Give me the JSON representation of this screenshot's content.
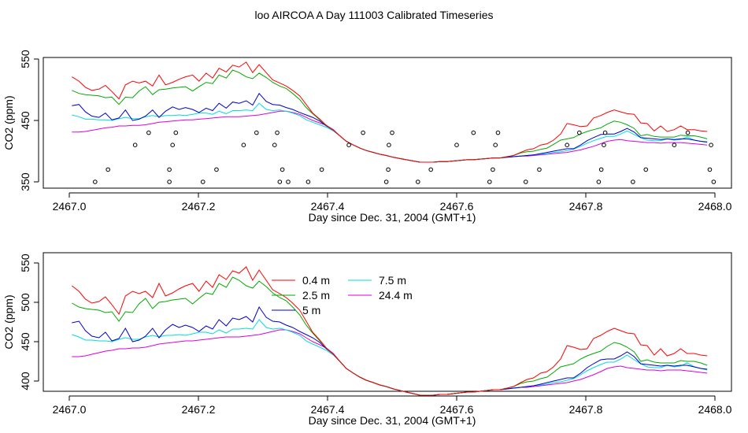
{
  "title": "loo AIRCOA A  Day 111003  Calibrated Timeseries",
  "chart_data": [
    {
      "type": "line",
      "xlabel": "Day since Dec. 31, 2004 (GMT+1)",
      "ylabel": "CO2 (ppm)",
      "xlim": [
        2467.0,
        2468.0
      ],
      "ylim": [
        350,
        550
      ],
      "xticks": [
        "2467.0",
        "2467.2",
        "2467.4",
        "2467.6",
        "2467.8",
        "2468.0"
      ],
      "yticks": [
        "350",
        "450",
        "550"
      ],
      "grid": false,
      "legend": "none",
      "x": [
        2467.004,
        2467.015,
        2467.025,
        2467.035,
        2467.046,
        2467.056,
        2467.066,
        2467.077,
        2467.087,
        2467.098,
        2467.108,
        2467.118,
        2467.129,
        2467.139,
        2467.149,
        2467.16,
        2467.17,
        2467.18,
        2467.191,
        2467.201,
        2467.212,
        2467.222,
        2467.232,
        2467.243,
        2467.253,
        2467.263,
        2467.274,
        2467.284,
        2467.294,
        2467.305,
        2467.315,
        2467.326,
        2467.336,
        2467.346,
        2467.357,
        2467.367,
        2467.377,
        2467.388,
        2467.398,
        2467.409,
        2467.419,
        2467.429,
        2467.44,
        2467.45,
        2467.46,
        2467.471,
        2467.481,
        2467.491,
        2467.502,
        2467.512,
        2467.522,
        2467.533,
        2467.543,
        2467.554,
        2467.564,
        2467.574,
        2467.585,
        2467.595,
        2467.605,
        2467.616,
        2467.626,
        2467.636,
        2467.647,
        2467.657,
        2467.667,
        2467.678,
        2467.688,
        2467.699,
        2467.709,
        2467.719,
        2467.73,
        2467.74,
        2467.75,
        2467.761,
        2467.771,
        2467.781,
        2467.792,
        2467.802,
        2467.812,
        2467.823,
        2467.833,
        2467.844,
        2467.854,
        2467.864,
        2467.875,
        2467.885,
        2467.895,
        2467.906,
        2467.916,
        2467.926,
        2467.937,
        2467.947,
        2467.957,
        2467.968,
        2467.978,
        2467.988
      ],
      "series": [
        {
          "name": "0.4 m",
          "color": "#ff0000",
          "values": [
            521,
            514,
            504,
            499,
            501,
            507,
            497,
            485,
            508,
            514,
            511,
            514,
            506,
            524,
            508,
            512,
            517,
            521,
            524,
            514,
            527,
            519,
            535,
            529,
            540,
            537,
            545,
            528,
            541,
            528,
            516,
            511,
            506,
            499,
            490,
            476,
            462,
            452,
            442,
            434,
            425,
            416,
            410,
            405,
            401,
            398,
            395,
            393,
            390,
            388,
            386,
            384,
            382,
            382,
            382,
            383,
            383,
            384,
            385,
            386,
            386,
            387,
            388,
            389,
            389,
            391,
            393,
            398,
            402,
            404,
            410,
            412,
            418,
            428,
            445,
            443,
            440,
            441,
            454,
            458,
            463,
            467,
            464,
            461,
            460,
            446,
            445,
            433,
            441,
            432,
            435,
            441,
            435,
            435,
            433,
            432
          ]
        },
        {
          "name": "2.5 m",
          "color": "#00aa00",
          "values": [
            499,
            494,
            492,
            491,
            490,
            487,
            488,
            476,
            488,
            487,
            498,
            505,
            492,
            500,
            501,
            503,
            504,
            505,
            498,
            505,
            512,
            510,
            524,
            519,
            532,
            528,
            521,
            518,
            527,
            520,
            512,
            506,
            502,
            494,
            484,
            471,
            461,
            451,
            442,
            434,
            425,
            416,
            410,
            405,
            401,
            398,
            395,
            393,
            390,
            388,
            386,
            384,
            382,
            382,
            382,
            383,
            383,
            384,
            385,
            386,
            386,
            387,
            388,
            389,
            389,
            391,
            393,
            397,
            399,
            400,
            403,
            405,
            411,
            418,
            420,
            422,
            428,
            432,
            435,
            438,
            444,
            449,
            447,
            443,
            437,
            425,
            427,
            424,
            423,
            423,
            423,
            426,
            425,
            425,
            423,
            420
          ]
        },
        {
          "name": "5 m",
          "color": "#0000cc",
          "values": [
            474,
            476,
            464,
            457,
            455,
            462,
            451,
            454,
            467,
            450,
            452,
            457,
            467,
            455,
            465,
            472,
            468,
            471,
            468,
            463,
            470,
            466,
            478,
            470,
            480,
            478,
            482,
            475,
            494,
            481,
            476,
            475,
            471,
            468,
            463,
            459,
            455,
            449,
            441,
            434,
            425,
            416,
            410,
            405,
            401,
            398,
            395,
            393,
            390,
            388,
            386,
            384,
            382,
            382,
            382,
            383,
            383,
            384,
            385,
            386,
            386,
            387,
            388,
            389,
            389,
            390,
            391,
            392,
            393,
            394,
            396,
            398,
            400,
            402,
            404,
            404,
            410,
            417,
            422,
            427,
            428,
            428,
            432,
            437,
            431,
            422,
            421,
            420,
            419,
            420,
            419,
            420,
            420,
            418,
            416,
            415
          ]
        },
        {
          "name": "7.5 m",
          "color": "#00dddd",
          "values": [
            459,
            456,
            452,
            452,
            451,
            451,
            450,
            453,
            455,
            453,
            453,
            456,
            458,
            456,
            458,
            458,
            459,
            458,
            460,
            462,
            462,
            460,
            465,
            461,
            466,
            466,
            467,
            466,
            478,
            468,
            466,
            467,
            465,
            462,
            458,
            451,
            447,
            443,
            439,
            433,
            425,
            416,
            410,
            405,
            401,
            398,
            395,
            393,
            390,
            388,
            386,
            384,
            382,
            382,
            382,
            383,
            383,
            384,
            385,
            386,
            386,
            387,
            388,
            389,
            389,
            390,
            391,
            392,
            393,
            394,
            395,
            396,
            398,
            399,
            401,
            403,
            408,
            413,
            417,
            421,
            424,
            424,
            428,
            433,
            427,
            422,
            418,
            417,
            417,
            420,
            418,
            419,
            423,
            418,
            416,
            414
          ]
        },
        {
          "name": "24.4 m",
          "color": "#dd00dd",
          "values": [
            431,
            431,
            432,
            434,
            436,
            438,
            439,
            441,
            441,
            442,
            442,
            443,
            445,
            447,
            448,
            449,
            450,
            451,
            451,
            452,
            453,
            454,
            455,
            456,
            456,
            456,
            457,
            458,
            459,
            461,
            463,
            465,
            465,
            463,
            460,
            455,
            450,
            446,
            442,
            435,
            425,
            416,
            410,
            405,
            401,
            398,
            395,
            393,
            390,
            388,
            386,
            384,
            382,
            382,
            382,
            383,
            383,
            384,
            385,
            386,
            386,
            387,
            388,
            389,
            389,
            390,
            391,
            392,
            392,
            393,
            394,
            395,
            396,
            397,
            398,
            400,
            402,
            405,
            408,
            412,
            416,
            418,
            419,
            417,
            416,
            415,
            414,
            414,
            413,
            414,
            414,
            414,
            413,
            412,
            411,
            410
          ]
        }
      ],
      "markers": {
        "symbol": "circle",
        "x": [
          2467.04,
          2467.06,
          2467.102,
          2467.123,
          2467.155,
          2467.155,
          2467.16,
          2467.165,
          2467.207,
          2467.228,
          2467.27,
          2467.29,
          2467.318,
          2467.322,
          2467.326,
          2467.33,
          2467.339,
          2467.37,
          2467.391,
          2467.433,
          2467.455,
          2467.491,
          2467.494,
          2467.495,
          2467.5,
          2467.54,
          2467.56,
          2467.6,
          2467.626,
          2467.651,
          2467.656,
          2467.66,
          2467.664,
          2467.707,
          2467.728,
          2467.771,
          2467.79,
          2467.82,
          2467.824,
          2467.828,
          2467.83,
          2467.873,
          2467.893,
          2467.937,
          2467.958,
          2467.992,
          2467.994,
          2467.998
        ],
        "y": [
          350,
          370,
          410,
          430,
          350,
          370,
          410,
          430,
          350,
          370,
          410,
          430,
          410,
          430,
          350,
          370,
          350,
          350,
          370,
          410,
          430,
          350,
          370,
          410,
          430,
          350,
          370,
          410,
          430,
          350,
          370,
          410,
          430,
          350,
          370,
          410,
          430,
          350,
          370,
          410,
          430,
          350,
          370,
          410,
          430,
          370,
          410,
          350
        ]
      }
    },
    {
      "type": "line",
      "xlabel": "Day since Dec. 31, 2004 (GMT+1)",
      "ylabel": "CO2 (ppm)",
      "xlim": [
        2467.0,
        2468.0
      ],
      "ylim": [
        390,
        550
      ],
      "xticks": [
        "2467.0",
        "2467.2",
        "2467.4",
        "2467.6",
        "2467.8",
        "2468.0"
      ],
      "yticks": [
        "400",
        "450",
        "500",
        "550"
      ],
      "grid": false,
      "legend": "top-center",
      "legend_labels": [
        "0.4 m",
        "2.5 m",
        "5 m",
        "7.5 m",
        "24.4 m"
      ],
      "series_ref": "same series as first chart"
    }
  ]
}
